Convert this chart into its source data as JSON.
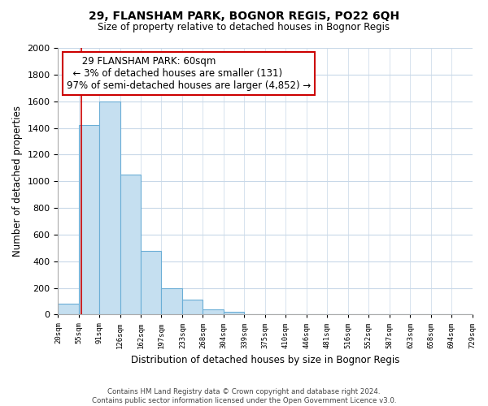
{
  "title": "29, FLANSHAM PARK, BOGNOR REGIS, PO22 6QH",
  "subtitle": "Size of property relative to detached houses in Bognor Regis",
  "xlabel": "Distribution of detached houses by size in Bognor Regis",
  "ylabel": "Number of detached properties",
  "footer_line1": "Contains HM Land Registry data © Crown copyright and database right 2024.",
  "footer_line2": "Contains public sector information licensed under the Open Government Licence v3.0.",
  "annotation_title": "29 FLANSHAM PARK: 60sqm",
  "annotation_line2": "← 3% of detached houses are smaller (131)",
  "annotation_line3": "97% of semi-detached houses are larger (4,852) →",
  "property_size_sqm": 60,
  "bin_edges": [
    20,
    55,
    91,
    126,
    162,
    197,
    233,
    268,
    304,
    339,
    375,
    410,
    446,
    481,
    516,
    552,
    587,
    623,
    658,
    694,
    729
  ],
  "bin_counts": [
    80,
    1420,
    1600,
    1050,
    480,
    200,
    110,
    40,
    20,
    0,
    0,
    0,
    0,
    0,
    0,
    0,
    0,
    0,
    0,
    0
  ],
  "bar_color": "#c5dff0",
  "bar_edgecolor": "#6baed6",
  "redline_color": "#cc0000",
  "annotation_box_edgecolor": "#cc0000",
  "annotation_box_facecolor": "#ffffff",
  "ylim": [
    0,
    2000
  ],
  "yticks": [
    0,
    200,
    400,
    600,
    800,
    1000,
    1200,
    1400,
    1600,
    1800,
    2000
  ],
  "background_color": "#ffffff",
  "grid_color": "#c8d8e8"
}
